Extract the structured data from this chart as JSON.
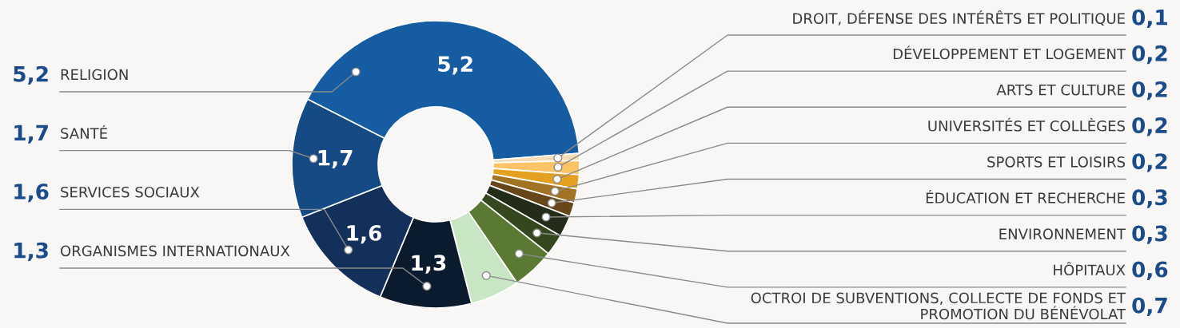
{
  "chart_data": {
    "type": "donut",
    "categories": [
      "RELIGION",
      "DROIT, DÉFENSE DES INTÉRÊTS ET POLITIQUE",
      "DÉVELOPPEMENT ET LOGEMENT",
      "ARTS ET CULTURE",
      "UNIVERSITÉS ET COLLÈGES",
      "SPORTS ET LOISIRS",
      "ÉDUCATION ET RECHERCHE",
      "ENVIRONNEMENT",
      "HÔPITAUX",
      "OCTROI DE SUBVENTIONS, COLLECTE DE FONDS ET\nPROMOTION DU BÉNÉVOLAT",
      "ORGANISMES INTERNATIONAUX",
      "SERVICES SOCIAUX",
      "SANTÉ"
    ],
    "values": [
      5.2,
      0.1,
      0.2,
      0.2,
      0.2,
      0.2,
      0.3,
      0.3,
      0.6,
      0.7,
      1.3,
      1.6,
      1.7
    ],
    "colors": [
      "#165ca2",
      "#f5dcb4",
      "#fcc467",
      "#e3a11f",
      "#a27325",
      "#674719",
      "#232c18",
      "#34471f",
      "#5a7a34",
      "#c8e5c4",
      "#0b1b2e",
      "#12305a",
      "#164a84"
    ],
    "data_labels": true,
    "value_labels": [
      "5,2",
      "0,1",
      "0,2",
      "0,2",
      "0,2",
      "0,2",
      "0,3",
      "0,3",
      "0,6",
      "0,7",
      "1,3",
      "1,6",
      "1,7"
    ]
  }
}
